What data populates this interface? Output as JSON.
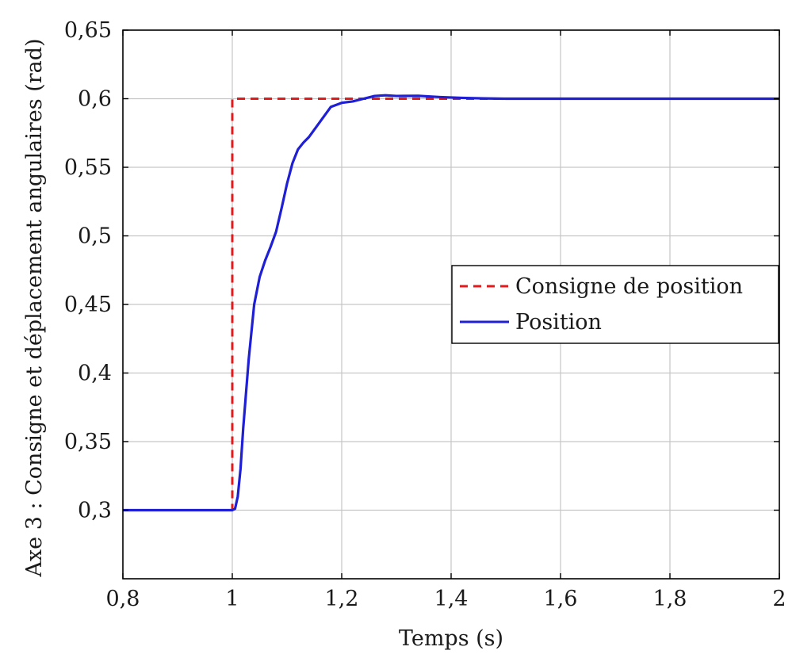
{
  "chart_data": {
    "type": "line",
    "title": "",
    "xlabel": "Temps (s)",
    "ylabel": "Axe 3 : Consigne et déplacement angulaires (rad)",
    "xlim": [
      0.8,
      2.0
    ],
    "ylim": [
      0.25,
      0.65
    ],
    "grid": true,
    "legend_position": "center-right",
    "x_ticks": [
      0.8,
      1.0,
      1.2,
      1.4,
      1.6,
      1.8,
      2.0
    ],
    "x_tick_labels": [
      "0,8",
      "1",
      "1,2",
      "1,4",
      "1,6",
      "1,8",
      "2"
    ],
    "y_ticks": [
      0.3,
      0.35,
      0.4,
      0.45,
      0.5,
      0.55,
      0.6,
      0.65
    ],
    "y_tick_labels": [
      "0,3",
      "0,35",
      "0,4",
      "0,45",
      "0,5",
      "0,55",
      "0,6",
      "0,65"
    ],
    "series": [
      {
        "name": "Consigne de position",
        "color": "#e31a1c",
        "style": "dashed",
        "x": [
          0.8,
          1.0,
          1.0,
          2.0
        ],
        "y": [
          0.3,
          0.3,
          0.6,
          0.6
        ]
      },
      {
        "name": "Position",
        "color": "#1f1fd6",
        "style": "solid",
        "x": [
          0.8,
          1.0,
          1.005,
          1.01,
          1.015,
          1.02,
          1.03,
          1.04,
          1.05,
          1.06,
          1.07,
          1.08,
          1.09,
          1.1,
          1.11,
          1.12,
          1.13,
          1.14,
          1.16,
          1.18,
          1.2,
          1.22,
          1.24,
          1.26,
          1.28,
          1.3,
          1.34,
          1.38,
          1.42,
          1.46,
          1.5,
          1.6,
          1.8,
          2.0
        ],
        "y": [
          0.3,
          0.3,
          0.301,
          0.31,
          0.33,
          0.36,
          0.41,
          0.45,
          0.47,
          0.482,
          0.492,
          0.503,
          0.52,
          0.538,
          0.553,
          0.563,
          0.568,
          0.572,
          0.583,
          0.594,
          0.597,
          0.598,
          0.6,
          0.602,
          0.6025,
          0.602,
          0.6021,
          0.6012,
          0.6006,
          0.6002,
          0.6,
          0.6,
          0.6,
          0.6
        ]
      }
    ]
  }
}
